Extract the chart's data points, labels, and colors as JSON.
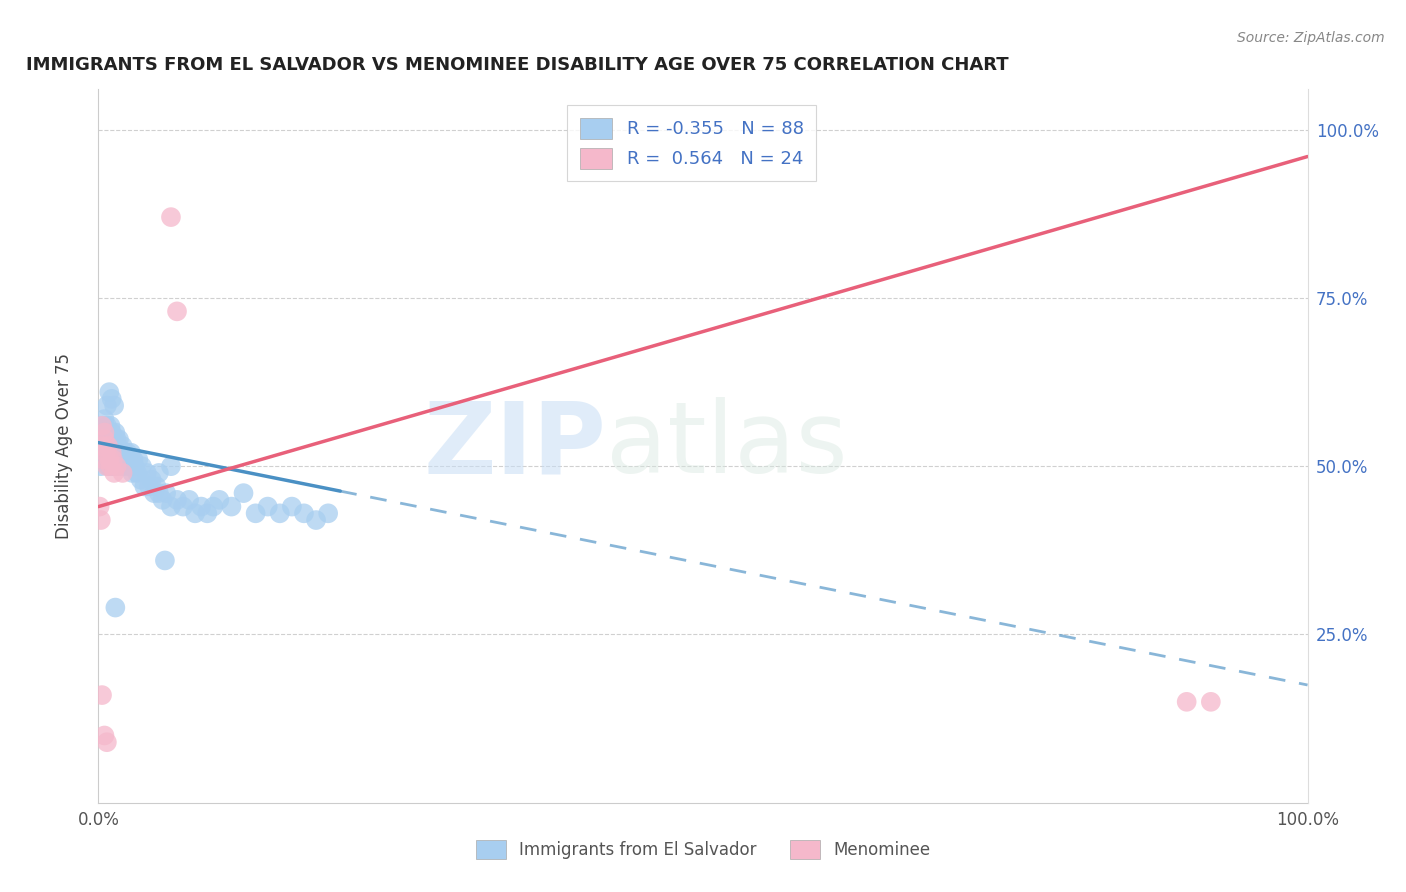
{
  "title": "IMMIGRANTS FROM EL SALVADOR VS MENOMINEE DISABILITY AGE OVER 75 CORRELATION CHART",
  "source": "Source: ZipAtlas.com",
  "ylabel": "Disability Age Over 75",
  "legend_blue_r": "-0.355",
  "legend_blue_n": "88",
  "legend_pink_r": "0.564",
  "legend_pink_n": "24",
  "blue_color": "#a8cef0",
  "pink_color": "#f5b8cb",
  "blue_line_color": "#4a90c4",
  "pink_line_color": "#e8607a",
  "blue_line_solid_end": 0.2,
  "blue_trendline_x0": 0.0,
  "blue_trendline_y0": 0.535,
  "blue_trendline_x1": 1.0,
  "blue_trendline_y1": 0.175,
  "pink_trendline_x0": 0.0,
  "pink_trendline_y0": 0.44,
  "pink_trendline_x1": 1.0,
  "pink_trendline_y1": 0.96,
  "blue_scatter_x": [
    0.001,
    0.002,
    0.002,
    0.003,
    0.003,
    0.003,
    0.004,
    0.004,
    0.005,
    0.005,
    0.006,
    0.006,
    0.007,
    0.007,
    0.008,
    0.008,
    0.009,
    0.009,
    0.01,
    0.01,
    0.01,
    0.011,
    0.011,
    0.012,
    0.012,
    0.013,
    0.013,
    0.014,
    0.014,
    0.015,
    0.015,
    0.016,
    0.016,
    0.017,
    0.017,
    0.018,
    0.019,
    0.02,
    0.02,
    0.021,
    0.022,
    0.023,
    0.024,
    0.025,
    0.026,
    0.027,
    0.028,
    0.029,
    0.03,
    0.032,
    0.033,
    0.035,
    0.036,
    0.038,
    0.04,
    0.042,
    0.044,
    0.046,
    0.048,
    0.05,
    0.053,
    0.056,
    0.06,
    0.065,
    0.07,
    0.075,
    0.08,
    0.085,
    0.09,
    0.095,
    0.1,
    0.11,
    0.12,
    0.13,
    0.14,
    0.15,
    0.16,
    0.17,
    0.18,
    0.19,
    0.007,
    0.009,
    0.011,
    0.013,
    0.05,
    0.06,
    0.014,
    0.055
  ],
  "blue_scatter_y": [
    0.52,
    0.54,
    0.5,
    0.56,
    0.53,
    0.51,
    0.55,
    0.51,
    0.57,
    0.53,
    0.54,
    0.51,
    0.56,
    0.52,
    0.55,
    0.5,
    0.54,
    0.51,
    0.56,
    0.53,
    0.5,
    0.55,
    0.52,
    0.54,
    0.51,
    0.53,
    0.5,
    0.55,
    0.52,
    0.54,
    0.51,
    0.53,
    0.5,
    0.54,
    0.51,
    0.52,
    0.5,
    0.53,
    0.51,
    0.52,
    0.51,
    0.5,
    0.52,
    0.51,
    0.5,
    0.52,
    0.49,
    0.51,
    0.5,
    0.49,
    0.51,
    0.48,
    0.5,
    0.47,
    0.49,
    0.47,
    0.48,
    0.46,
    0.47,
    0.46,
    0.45,
    0.46,
    0.44,
    0.45,
    0.44,
    0.45,
    0.43,
    0.44,
    0.43,
    0.44,
    0.45,
    0.44,
    0.46,
    0.43,
    0.44,
    0.43,
    0.44,
    0.43,
    0.42,
    0.43,
    0.59,
    0.61,
    0.6,
    0.59,
    0.49,
    0.5,
    0.29,
    0.36
  ],
  "pink_scatter_x": [
    0.003,
    0.004,
    0.005,
    0.006,
    0.007,
    0.008,
    0.009,
    0.01,
    0.011,
    0.012,
    0.013,
    0.015,
    0.02,
    0.003,
    0.005,
    0.001,
    0.002,
    0.003,
    0.06,
    0.065,
    0.9,
    0.92,
    0.005,
    0.007
  ],
  "pink_scatter_y": [
    0.53,
    0.51,
    0.54,
    0.52,
    0.5,
    0.53,
    0.51,
    0.5,
    0.52,
    0.51,
    0.49,
    0.5,
    0.49,
    0.56,
    0.55,
    0.44,
    0.42,
    0.16,
    0.87,
    0.73,
    0.15,
    0.15,
    0.1,
    0.09
  ],
  "xlim": [
    0.0,
    1.0
  ],
  "ylim": [
    0.0,
    1.06
  ],
  "watermark_zip": "ZIP",
  "watermark_atlas": "atlas",
  "background_color": "#ffffff"
}
